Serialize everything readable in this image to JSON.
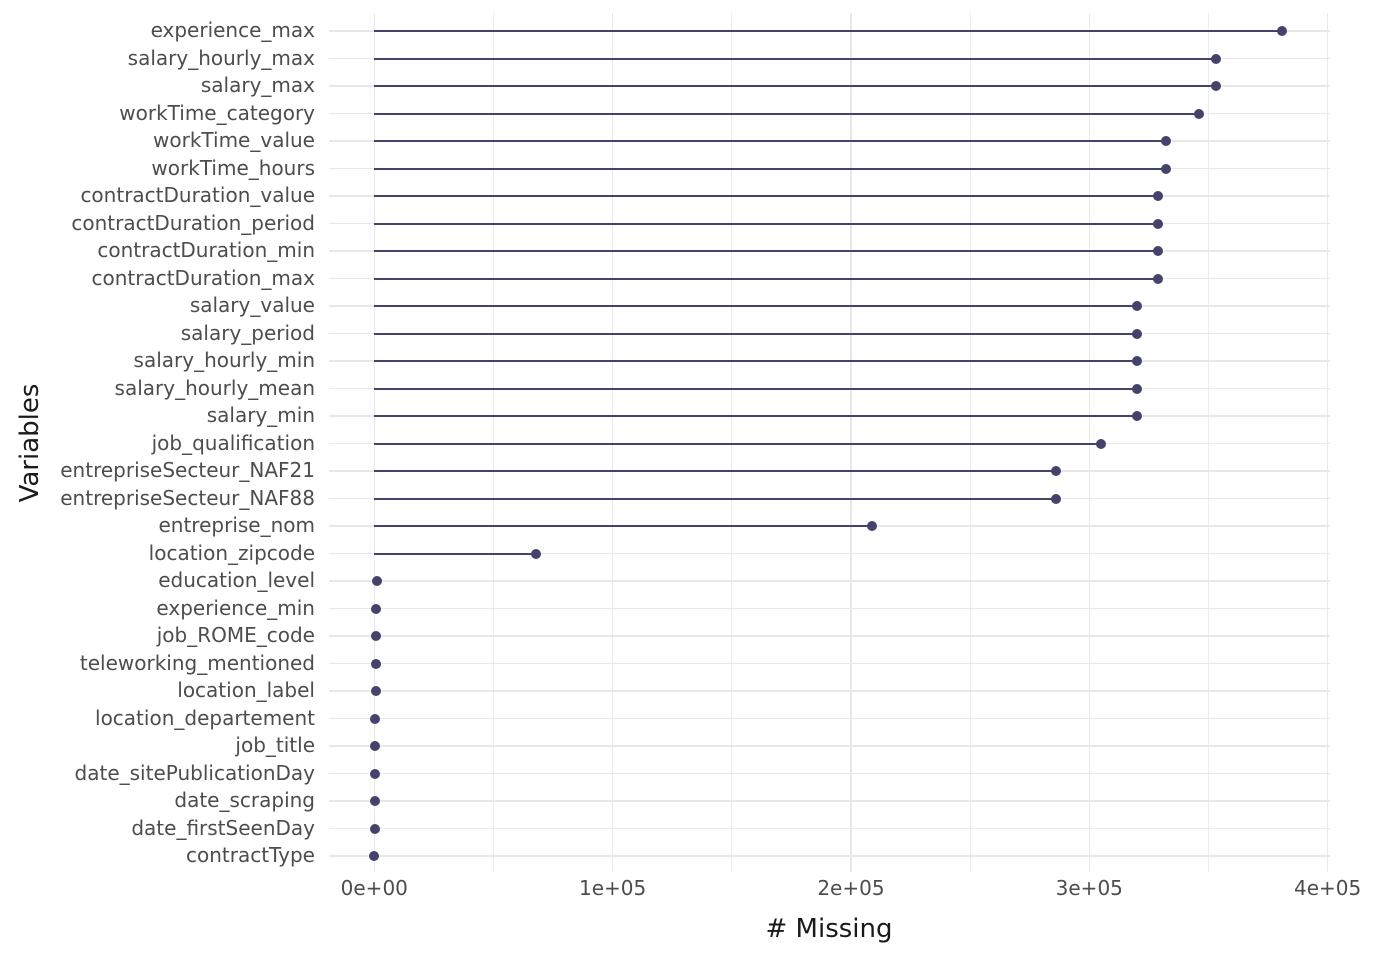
{
  "chart_data": {
    "type": "bar",
    "subtype": "lollipop",
    "orientation": "horizontal",
    "title": "",
    "xlabel": "# Missing",
    "ylabel": "Variables",
    "legend": "none",
    "grid": "on",
    "xlim": [
      -19000,
      401000
    ],
    "x_ticks": [
      {
        "value": 0,
        "label": "0e+00"
      },
      {
        "value": 100000,
        "label": "1e+05"
      },
      {
        "value": 200000,
        "label": "2e+05"
      },
      {
        "value": 300000,
        "label": "3e+05"
      },
      {
        "value": 400000,
        "label": "4e+05"
      }
    ],
    "x_minor_ticks": [
      50000,
      150000,
      250000,
      350000
    ],
    "categories": [
      "experience_max",
      "salary_hourly_max",
      "salary_max",
      "workTime_category",
      "workTime_value",
      "workTime_hours",
      "contractDuration_value",
      "contractDuration_period",
      "contractDuration_min",
      "contractDuration_max",
      "salary_value",
      "salary_period",
      "salary_hourly_min",
      "salary_hourly_mean",
      "salary_min",
      "job_qualification",
      "entrepriseSecteur_NAF21",
      "entrepriseSecteur_NAF88",
      "entreprise_nom",
      "location_zipcode",
      "education_level",
      "experience_min",
      "job_ROME_code",
      "teleworking_mentioned",
      "location_label",
      "location_departement",
      "job_title",
      "date_sitePublicationDay",
      "date_scraping",
      "date_firstSeenDay",
      "contractType"
    ],
    "values": [
      381000,
      353000,
      353000,
      346000,
      332000,
      332000,
      329000,
      329000,
      329000,
      329000,
      320000,
      320000,
      320000,
      320000,
      320000,
      305000,
      286000,
      286000,
      209000,
      68000,
      1000,
      900,
      800,
      700,
      600,
      500,
      400,
      300,
      200,
      100,
      50
    ],
    "colors": {
      "point": "#44436B",
      "stem": "#44436B",
      "grid_major": "#E8E8E8",
      "grid_minor": "#EDEDED",
      "axis_text": "#4D4D4D",
      "axis_title": "#1A1A1A",
      "background": "#FFFFFF"
    }
  }
}
